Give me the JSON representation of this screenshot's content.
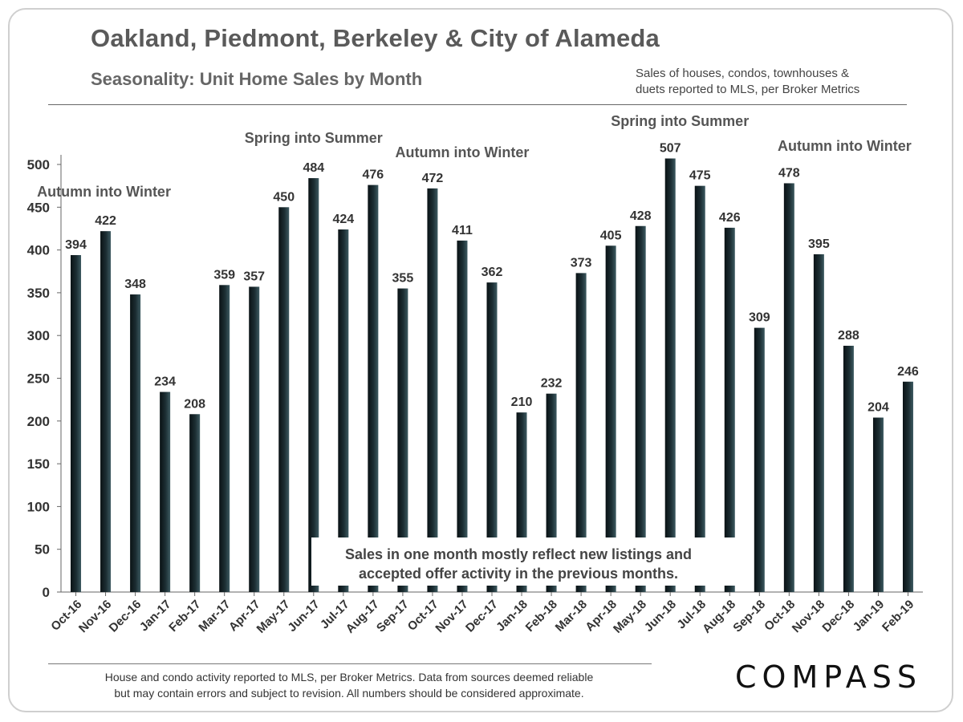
{
  "header": {
    "title": "Oakland, Piedmont, Berkeley & City of Alameda",
    "subtitle": "Seasonality:  Unit Home Sales by Month",
    "source_line1": "Sales of houses,  condos,  townhouses &",
    "source_line2": "duets reported to MLS, per Broker Metrics"
  },
  "footer": {
    "note_line1": "House and condo activity reported to MLS, per Broker Metrics. Data from sources deemed reliable",
    "note_line2": "but may contain errors  and subject to revision.  All numbers  should be considered approximate.",
    "logo_text": "COMPASS",
    "logo_icon": "compass-o-icon"
  },
  "chart_data": {
    "type": "bar",
    "title": "Seasonality:  Unit Home Sales by Month",
    "xlabel": "",
    "ylabel": "",
    "ylim": [
      0,
      500
    ],
    "yticks": [
      0,
      50,
      100,
      150,
      200,
      250,
      300,
      350,
      400,
      450,
      500
    ],
    "grid": false,
    "legend": "none",
    "bar_color": "#1c2e33",
    "categories": [
      "Oct-16",
      "Nov-16",
      "Dec-16",
      "Jan-17",
      "Feb-17",
      "Mar-17",
      "Apr-17",
      "May-17",
      "Jun-17",
      "Jul-17",
      "Aug-17",
      "Sep-17",
      "Oct-17",
      "Nov-17",
      "Dec-17",
      "Jan-18",
      "Feb-18",
      "Mar-18",
      "Apr-18",
      "May-18",
      "Jun-18",
      "Jul-18",
      "Aug-18",
      "Sep-18",
      "Oct-18",
      "Nov-18",
      "Dec-18",
      "Jan-19",
      "Feb-19"
    ],
    "values": [
      394,
      422,
      348,
      234,
      208,
      359,
      357,
      450,
      484,
      424,
      476,
      355,
      472,
      411,
      362,
      210,
      232,
      373,
      405,
      428,
      507,
      475,
      426,
      309,
      478,
      395,
      288,
      204,
      246
    ],
    "annotations": [
      {
        "text": "Autumn into Winter",
        "category": "Nov-16"
      },
      {
        "text": "Spring into Summer",
        "category": "Jun-17"
      },
      {
        "text": "Autumn into Winter",
        "category": "Nov-17"
      },
      {
        "text": "Spring into Summer",
        "category": "Jun-18"
      },
      {
        "text": "Autumn into Winter",
        "category": "Nov-18"
      }
    ],
    "callout_line1": "Sales in one month mostly reflect new listings and",
    "callout_line2": "accepted offer activity in the previous months."
  }
}
